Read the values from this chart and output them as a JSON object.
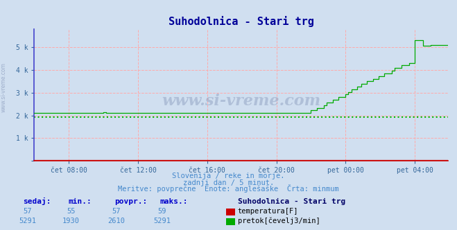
{
  "title": "Suhodolnica - Stari trg",
  "title_color": "#000099",
  "title_fontsize": 11,
  "bg_color": "#d0dff0",
  "plot_bg_color": "#d0dff0",
  "xmin": 0,
  "xmax": 287,
  "ymin": 0,
  "ymax": 5800,
  "yticks": [
    0,
    1000,
    2000,
    3000,
    4000,
    5000
  ],
  "ytick_labels": [
    "",
    "1 k",
    "2 k",
    "3 k",
    "4 k",
    "5 k"
  ],
  "xtick_positions": [
    24,
    72,
    120,
    168,
    216,
    264
  ],
  "xtick_labels": [
    "čet 08:00",
    "čet 12:00",
    "čet 16:00",
    "čet 20:00",
    "pet 00:00",
    "pet 04:00"
  ],
  "grid_color": "#ffaaaa",
  "min_line_color": "#00bb00",
  "min_line_value": 1930,
  "temp_color": "#cc0000",
  "flow_color": "#00aa00",
  "footer_line1": "Slovenija / reke in morje.",
  "footer_line2": "zadnji dan / 5 minut.",
  "footer_line3": "Meritve: povprečne  Enote: anglešaške  Črta: minmum",
  "footer_color": "#4488cc",
  "legend_title": "Suhodolnica - Stari trg",
  "legend_temp": "temperatura[F]",
  "legend_flow": "pretok[čevelj3/min]",
  "table_headers": [
    "sedaj:",
    "min.:",
    "povpr.:",
    "maks.:"
  ],
  "table_temp": [
    57,
    55,
    57,
    59
  ],
  "table_flow": [
    5291,
    1930,
    2610,
    5291
  ],
  "left_axis_color": "#4444cc",
  "bottom_axis_color": "#cc0000"
}
